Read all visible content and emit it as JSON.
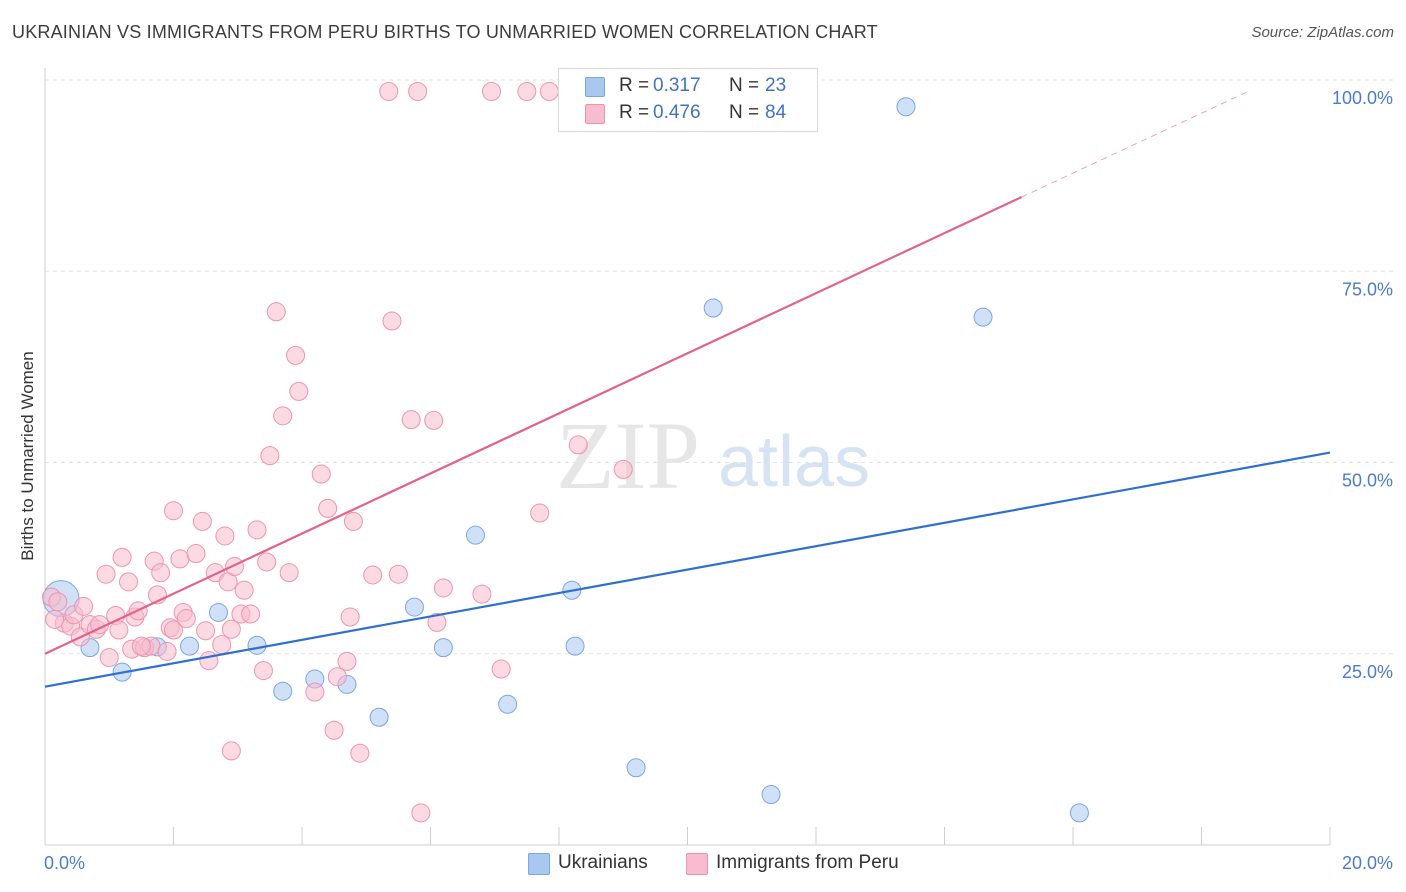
{
  "title": "UKRAINIAN VS IMMIGRANTS FROM PERU BIRTHS TO UNMARRIED WOMEN CORRELATION CHART",
  "source": "Source: ZipAtlas.com",
  "watermark": {
    "zip": "ZIP",
    "atlas": "atlas"
  },
  "legend": {
    "rows": [
      {
        "r_label": "R =",
        "r_value": "0.317",
        "n_label": "N =",
        "n_value": "23"
      },
      {
        "r_label": "R =",
        "r_value": "0.476",
        "n_label": "N =",
        "n_value": "84"
      }
    ],
    "bottom": [
      "Ukrainians",
      "Immigrants from Peru"
    ]
  },
  "colors": {
    "ukrainians_fill": "#a9c8f0",
    "ukrainians_stroke": "#7aa7e0",
    "ukrainians_line": "#2f6fd0",
    "peru_fill": "#f7bccd",
    "peru_stroke": "#ee93ae",
    "peru_line": "#e2628c",
    "axis_label": "#4a7cc7",
    "grid": "#e3e3e3"
  },
  "chart_data": {
    "type": "scatter",
    "title": "UKRAINIAN VS IMMIGRANTS FROM PERU BIRTHS TO UNMARRIED WOMEN CORRELATION CHART",
    "xlabel": "",
    "ylabel": "Births to Unmarried Women",
    "xlim": [
      0,
      20
    ],
    "ylim": [
      0,
      100
    ],
    "x_tick_labels": [
      "0.0%",
      "20.0%"
    ],
    "y_tick_labels": [
      "25.0%",
      "50.0%",
      "75.0%",
      "100.0%"
    ],
    "y_ticks": [
      25,
      50,
      75,
      100
    ],
    "grid": true,
    "legend_position": "top-center",
    "series": [
      {
        "name": "Ukrainians",
        "trend": {
          "x": [
            0,
            20
          ],
          "y": [
            20.7,
            51.3
          ]
        },
        "points": [
          [
            0.25,
            32.2
          ],
          [
            0.7,
            25.8
          ],
          [
            1.2,
            22.6
          ],
          [
            1.75,
            25.9
          ],
          [
            2.25,
            26.0
          ],
          [
            2.7,
            30.4
          ],
          [
            3.3,
            26.1
          ],
          [
            3.7,
            20.1
          ],
          [
            4.2,
            21.7
          ],
          [
            4.7,
            21.0
          ],
          [
            5.2,
            16.7
          ],
          [
            5.75,
            31.1
          ],
          [
            6.2,
            25.8
          ],
          [
            6.7,
            40.5
          ],
          [
            7.2,
            18.4
          ],
          [
            8.2,
            33.3
          ],
          [
            8.25,
            26.0
          ],
          [
            9.2,
            10.1
          ],
          [
            10.4,
            70.2
          ],
          [
            11.3,
            6.6
          ],
          [
            13.4,
            96.5
          ],
          [
            14.6,
            69.0
          ],
          [
            16.1,
            4.2
          ]
        ]
      },
      {
        "name": "Immigrants from Peru",
        "trend": {
          "x": [
            0,
            15.2
          ],
          "y": [
            25.0,
            84.7
          ]
        },
        "trend_extension": {
          "x": [
            15.2,
            18.7
          ],
          "y": [
            84.7,
            98.4
          ]
        },
        "points": [
          [
            0.1,
            32.4
          ],
          [
            0.2,
            31.8
          ],
          [
            0.3,
            29.0
          ],
          [
            0.4,
            28.6
          ],
          [
            0.45,
            30.1
          ],
          [
            0.55,
            27.2
          ],
          [
            0.6,
            31.2
          ],
          [
            0.7,
            28.8
          ],
          [
            0.8,
            28.2
          ],
          [
            0.85,
            28.8
          ],
          [
            0.95,
            35.4
          ],
          [
            1.0,
            24.5
          ],
          [
            1.1,
            30.0
          ],
          [
            1.15,
            28.1
          ],
          [
            1.2,
            37.6
          ],
          [
            1.3,
            34.4
          ],
          [
            1.35,
            25.6
          ],
          [
            1.4,
            29.8
          ],
          [
            1.45,
            30.6
          ],
          [
            1.55,
            25.8
          ],
          [
            1.65,
            26.0
          ],
          [
            1.7,
            37.1
          ],
          [
            1.75,
            32.7
          ],
          [
            1.8,
            35.6
          ],
          [
            1.9,
            25.3
          ],
          [
            1.95,
            28.4
          ],
          [
            2.0,
            28.1
          ],
          [
            2.1,
            37.4
          ],
          [
            2.15,
            30.4
          ],
          [
            2.2,
            29.6
          ],
          [
            2.35,
            38.1
          ],
          [
            2.45,
            42.3
          ],
          [
            2.5,
            28.0
          ],
          [
            2.55,
            24.1
          ],
          [
            2.65,
            35.6
          ],
          [
            2.75,
            26.2
          ],
          [
            2.8,
            40.4
          ],
          [
            2.85,
            34.4
          ],
          [
            2.9,
            28.2
          ],
          [
            2.95,
            36.4
          ],
          [
            3.05,
            30.2
          ],
          [
            3.1,
            33.3
          ],
          [
            3.2,
            30.2
          ],
          [
            3.3,
            41.2
          ],
          [
            3.4,
            22.8
          ],
          [
            3.45,
            37.0
          ],
          [
            3.5,
            50.9
          ],
          [
            3.6,
            69.7
          ],
          [
            3.7,
            56.1
          ],
          [
            3.8,
            35.6
          ],
          [
            3.9,
            64.0
          ],
          [
            3.95,
            59.3
          ],
          [
            4.2,
            20.0
          ],
          [
            4.3,
            48.5
          ],
          [
            4.4,
            44.0
          ],
          [
            4.5,
            15.0
          ],
          [
            4.55,
            22.0
          ],
          [
            4.7,
            24.0
          ],
          [
            4.75,
            29.8
          ],
          [
            4.8,
            42.3
          ],
          [
            5.1,
            35.3
          ],
          [
            5.4,
            68.5
          ],
          [
            5.5,
            35.4
          ],
          [
            5.7,
            55.6
          ],
          [
            5.85,
            4.2
          ],
          [
            6.05,
            55.5
          ],
          [
            6.1,
            29.1
          ],
          [
            6.2,
            33.6
          ],
          [
            6.8,
            32.8
          ],
          [
            7.1,
            23.0
          ],
          [
            7.7,
            43.4
          ],
          [
            8.3,
            52.3
          ],
          [
            9.0,
            49.1
          ],
          [
            2.0,
            43.7
          ],
          [
            2.9,
            12.3
          ],
          [
            5.35,
            98.5
          ],
          [
            5.8,
            98.5
          ],
          [
            6.95,
            98.5
          ],
          [
            7.5,
            98.5
          ],
          [
            7.85,
            98.5
          ],
          [
            8.25,
            98.5
          ],
          [
            4.9,
            12.0
          ],
          [
            1.5,
            26.0
          ],
          [
            0.15,
            29.5
          ]
        ]
      }
    ]
  }
}
